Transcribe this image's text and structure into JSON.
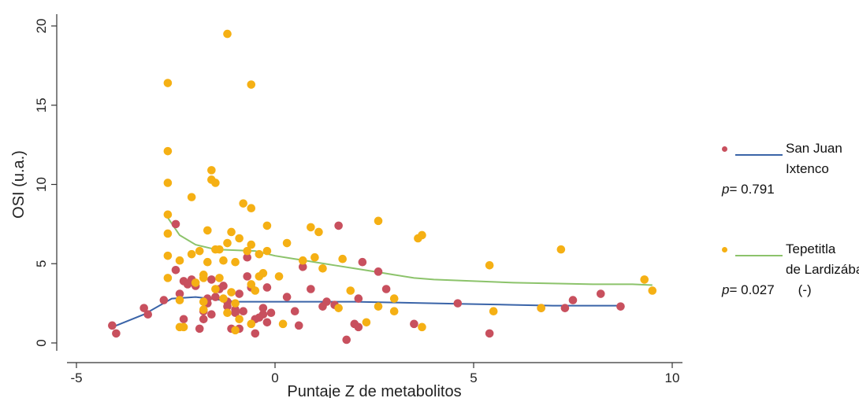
{
  "chart_data": {
    "type": "scatter",
    "xlabel": "Puntaje Z de metabolitos",
    "ylabel": "OSI (u.a.)",
    "xlim": [
      -5,
      10
    ],
    "ylim": [
      0,
      20
    ],
    "x_ticks": [
      -5,
      0,
      5,
      10
    ],
    "y_ticks": [
      0,
      5,
      10,
      15,
      20
    ],
    "grid": false,
    "legend_placement": "right",
    "series": [
      {
        "name": "San Juan Ixtenco",
        "color": "#c8505e",
        "line_color": "#3a64a8",
        "p_value": "0.791",
        "p_note": "",
        "points": [
          [
            -4.1,
            1.1
          ],
          [
            -4.0,
            0.6
          ],
          [
            -3.3,
            2.2
          ],
          [
            -3.2,
            1.8
          ],
          [
            -2.8,
            2.7
          ],
          [
            -2.5,
            7.5
          ],
          [
            -2.5,
            4.6
          ],
          [
            -2.4,
            3.1
          ],
          [
            -2.3,
            1.5
          ],
          [
            -2.3,
            3.9
          ],
          [
            -2.2,
            3.7
          ],
          [
            -2.1,
            4.0
          ],
          [
            -2.0,
            3.6
          ],
          [
            -1.9,
            0.9
          ],
          [
            -1.8,
            2.0
          ],
          [
            -1.8,
            1.5
          ],
          [
            -1.7,
            2.8
          ],
          [
            -1.7,
            2.5
          ],
          [
            -1.6,
            4.0
          ],
          [
            -1.5,
            2.9
          ],
          [
            -1.4,
            3.4
          ],
          [
            -1.3,
            3.6
          ],
          [
            -1.2,
            2.6
          ],
          [
            -1.2,
            2.3
          ],
          [
            -1.1,
            0.9
          ],
          [
            -1.0,
            2.1
          ],
          [
            -1.0,
            1.9
          ],
          [
            -0.9,
            3.1
          ],
          [
            -0.9,
            0.9
          ],
          [
            -0.8,
            2.0
          ],
          [
            -0.7,
            4.2
          ],
          [
            -0.7,
            5.4
          ],
          [
            -0.6,
            3.5
          ],
          [
            -0.5,
            0.6
          ],
          [
            -0.5,
            1.5
          ],
          [
            -0.4,
            1.6
          ],
          [
            -0.3,
            1.8
          ],
          [
            -0.3,
            2.2
          ],
          [
            -0.2,
            1.3
          ],
          [
            -0.1,
            1.9
          ],
          [
            0.3,
            2.9
          ],
          [
            0.5,
            2.0
          ],
          [
            0.6,
            1.1
          ],
          [
            0.7,
            4.8
          ],
          [
            0.9,
            3.4
          ],
          [
            1.2,
            2.3
          ],
          [
            1.3,
            2.6
          ],
          [
            1.5,
            2.4
          ],
          [
            1.6,
            7.4
          ],
          [
            1.8,
            0.2
          ],
          [
            2.0,
            1.2
          ],
          [
            2.1,
            1.0
          ],
          [
            2.1,
            2.8
          ],
          [
            2.2,
            5.1
          ],
          [
            2.6,
            4.5
          ],
          [
            2.8,
            3.4
          ],
          [
            3.5,
            1.2
          ],
          [
            4.6,
            2.5
          ],
          [
            5.4,
            0.6
          ],
          [
            6.7,
            2.2
          ],
          [
            7.3,
            2.2
          ],
          [
            7.5,
            2.7
          ],
          [
            8.2,
            3.1
          ],
          [
            8.7,
            2.3
          ],
          [
            -1.6,
            1.8
          ],
          [
            -0.2,
            3.5
          ]
        ],
        "fit": [
          [
            -4.1,
            1.0
          ],
          [
            -3.3,
            1.8
          ],
          [
            -2.6,
            2.8
          ],
          [
            -2.0,
            2.9
          ],
          [
            -1.0,
            2.6
          ],
          [
            0.0,
            2.6
          ],
          [
            1.0,
            2.6
          ],
          [
            2.0,
            2.6
          ],
          [
            3.0,
            2.55
          ],
          [
            4.0,
            2.5
          ],
          [
            5.0,
            2.45
          ],
          [
            6.0,
            2.4
          ],
          [
            7.0,
            2.35
          ],
          [
            8.0,
            2.35
          ],
          [
            8.8,
            2.35
          ]
        ]
      },
      {
        "name": "Tepetitla de Lardizábal",
        "color": "#f5b014",
        "line_color": "#8cc36b",
        "p_value": "0.027",
        "p_note": "(-)",
        "points": [
          [
            -2.7,
            16.4
          ],
          [
            -2.7,
            12.1
          ],
          [
            -2.7,
            10.1
          ],
          [
            -2.7,
            8.1
          ],
          [
            -2.7,
            6.9
          ],
          [
            -2.7,
            5.5
          ],
          [
            -2.7,
            4.1
          ],
          [
            -2.4,
            5.2
          ],
          [
            -2.4,
            2.7
          ],
          [
            -2.4,
            1.0
          ],
          [
            -2.1,
            9.2
          ],
          [
            -2.1,
            5.6
          ],
          [
            -2.0,
            3.8
          ],
          [
            -1.9,
            5.8
          ],
          [
            -1.8,
            2.1
          ],
          [
            -1.8,
            2.6
          ],
          [
            -1.8,
            4.3
          ],
          [
            -1.7,
            7.1
          ],
          [
            -1.7,
            5.1
          ],
          [
            -1.6,
            10.9
          ],
          [
            -1.6,
            10.3
          ],
          [
            -1.5,
            10.1
          ],
          [
            -1.5,
            5.9
          ],
          [
            -1.5,
            3.4
          ],
          [
            -1.4,
            5.9
          ],
          [
            -1.4,
            4.1
          ],
          [
            -1.3,
            5.2
          ],
          [
            -1.3,
            2.8
          ],
          [
            -1.2,
            19.5
          ],
          [
            -1.2,
            6.3
          ],
          [
            -1.2,
            1.9
          ],
          [
            -1.1,
            3.2
          ],
          [
            -1.1,
            7.0
          ],
          [
            -1.0,
            5.1
          ],
          [
            -1.0,
            2.5
          ],
          [
            -0.9,
            6.6
          ],
          [
            -0.8,
            8.8
          ],
          [
            -0.7,
            5.8
          ],
          [
            -0.6,
            16.3
          ],
          [
            -0.6,
            8.5
          ],
          [
            -0.6,
            6.2
          ],
          [
            -0.6,
            3.7
          ],
          [
            -0.6,
            1.2
          ],
          [
            -0.5,
            3.3
          ],
          [
            -0.4,
            4.2
          ],
          [
            -0.4,
            5.6
          ],
          [
            -0.3,
            4.4
          ],
          [
            -0.2,
            7.4
          ],
          [
            -0.2,
            5.8
          ],
          [
            0.1,
            4.2
          ],
          [
            0.3,
            6.3
          ],
          [
            0.2,
            1.2
          ],
          [
            0.7,
            5.2
          ],
          [
            0.9,
            7.3
          ],
          [
            1.0,
            5.4
          ],
          [
            1.1,
            7.0
          ],
          [
            1.2,
            4.7
          ],
          [
            1.6,
            2.2
          ],
          [
            1.7,
            5.3
          ],
          [
            1.9,
            3.3
          ],
          [
            2.3,
            1.3
          ],
          [
            2.6,
            7.7
          ],
          [
            2.6,
            2.3
          ],
          [
            3.0,
            2.0
          ],
          [
            3.0,
            2.8
          ],
          [
            3.6,
            6.6
          ],
          [
            3.7,
            6.8
          ],
          [
            3.7,
            1.0
          ],
          [
            5.4,
            4.9
          ],
          [
            5.5,
            2.0
          ],
          [
            6.7,
            2.2
          ],
          [
            7.2,
            5.9
          ],
          [
            9.3,
            4.0
          ],
          [
            9.5,
            3.3
          ],
          [
            -1.8,
            4.1
          ],
          [
            -0.9,
            1.5
          ],
          [
            -1.0,
            0.8
          ],
          [
            -2.3,
            1.0
          ]
        ],
        "fit": [
          [
            -2.7,
            7.9
          ],
          [
            -2.4,
            6.8
          ],
          [
            -2.0,
            6.2
          ],
          [
            -1.5,
            5.9
          ],
          [
            -1.0,
            5.85
          ],
          [
            -0.5,
            5.8
          ],
          [
            0.0,
            5.5
          ],
          [
            0.5,
            5.3
          ],
          [
            1.0,
            5.1
          ],
          [
            1.5,
            4.9
          ],
          [
            2.0,
            4.7
          ],
          [
            2.5,
            4.5
          ],
          [
            3.0,
            4.3
          ],
          [
            3.5,
            4.1
          ],
          [
            4.0,
            4.0
          ],
          [
            5.0,
            3.9
          ],
          [
            6.0,
            3.8
          ],
          [
            7.0,
            3.75
          ],
          [
            8.0,
            3.7
          ],
          [
            9.0,
            3.7
          ],
          [
            9.5,
            3.65
          ]
        ]
      }
    ]
  },
  "legend": {
    "p_label": "p",
    "p_sep": "= "
  }
}
